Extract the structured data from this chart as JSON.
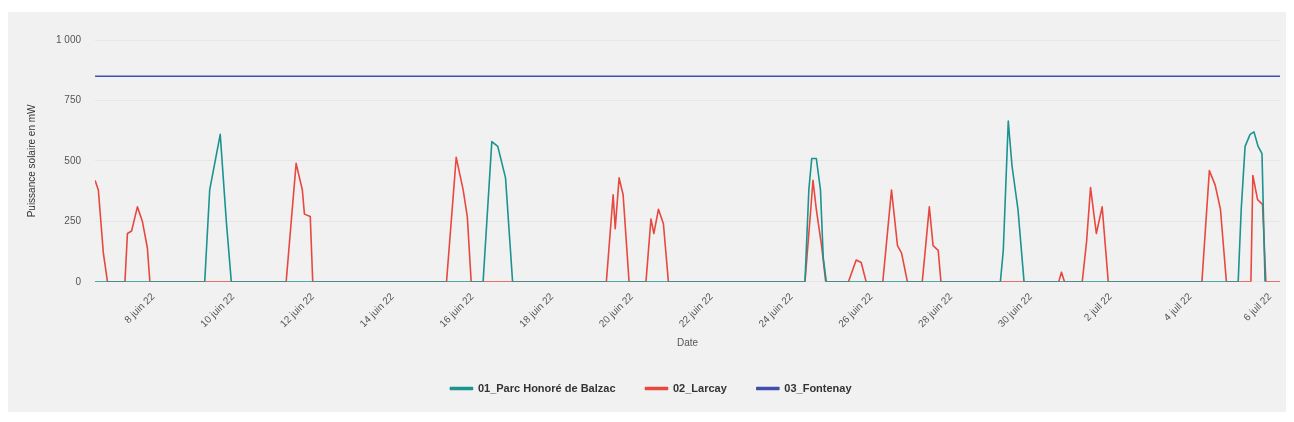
{
  "chart_data": {
    "type": "line",
    "xlabel": "Date",
    "ylabel": "Puissance solaire en mW",
    "xlim": [
      "--06-06T13:00",
      "--07-06T06:00"
    ],
    "xticks": [
      {
        "value": "--06-08",
        "label": "8 juin 22"
      },
      {
        "value": "--06-10",
        "label": "10 juin 22"
      },
      {
        "value": "--06-12",
        "label": "12 juin 22"
      },
      {
        "value": "--06-14",
        "label": "14 juin 22"
      },
      {
        "value": "--06-16",
        "label": "16 juin 22"
      },
      {
        "value": "--06-18",
        "label": "18 juin 22"
      },
      {
        "value": "--06-20",
        "label": "20 juin 22"
      },
      {
        "value": "--06-22",
        "label": "22 juin 22"
      },
      {
        "value": "--06-24",
        "label": "24 juin 22"
      },
      {
        "value": "--06-26",
        "label": "26 juin 22"
      },
      {
        "value": "--06-28",
        "label": "28 juin 22"
      },
      {
        "value": "--06-30",
        "label": "30 juin 22"
      },
      {
        "value": "--07-02",
        "label": "2 juil 22"
      },
      {
        "value": "--07-04",
        "label": "4 juil 22"
      },
      {
        "value": "--07-06",
        "label": "6 juil 22"
      }
    ],
    "ylim": [
      0,
      1000
    ],
    "yticks": [
      0,
      250,
      500,
      750,
      {
        "value": 1000,
        "label": "1 000"
      }
    ],
    "grid": "y",
    "legend": "bottom",
    "marker": "none",
    "line_style": "solid",
    "series": [
      {
        "name": "01_Parc Honoré de Balzac",
        "color": "#1a9391",
        "x": [
          "--06-06T13:00",
          "--06-09T07:00",
          "--06-09T10:00",
          "--06-09T16:20",
          "--06-09T20:00",
          "--06-09T23:00",
          "--06-16T06:30",
          "--06-16T11:45",
          "--06-16T15:20",
          "--06-16T20:00",
          "--06-17T00:15",
          "--06-24T08:10",
          "--06-24T10:30",
          "--06-24T12:15",
          "--06-24T15:00",
          "--06-24T17:30",
          "--06-24T19:10",
          "--06-24T21:00",
          "--06-29T05:45",
          "--06-29T07:30",
          "--06-29T10:30",
          "--06-29T12:45",
          "--06-29T16:20",
          "--06-29T20:00",
          "--07-05T04:50",
          "--07-05T06:40",
          "--07-05T09:00",
          "--07-05T12:00",
          "--07-05T14:20",
          "--07-05T16:50",
          "--07-05T19:10",
          "--07-05T21:00"
        ],
        "values": [
          0,
          0,
          380,
          610,
          250,
          0,
          0,
          580,
          560,
          430,
          0,
          0,
          380,
          510,
          510,
          380,
          100,
          0,
          0,
          130,
          665,
          480,
          300,
          0,
          0,
          300,
          560,
          610,
          620,
          560,
          530,
          0
        ]
      },
      {
        "name": "02_Larcay",
        "color": "#e8483f",
        "x": [
          "--06-06T13:00",
          "--06-06T15:00",
          "--06-06T18:00",
          "--06-06T20:30",
          "--06-07T07:00",
          "--06-07T08:30",
          "--06-07T11:00",
          "--06-07T14:30",
          "--06-07T17:30",
          "--06-07T20:30",
          "--06-07T22:00",
          "--06-11T08:00",
          "--06-11T14:00",
          "--06-11T17:45",
          "--06-11T19:00",
          "--06-11T22:30",
          "--06-12T00:00",
          "--06-15T08:30",
          "--06-15T14:20",
          "--06-15T18:30",
          "--06-15T21:00",
          "--06-15T23:20",
          "--06-19T08:40",
          "--06-19T12:45",
          "--06-19T14:00",
          "--06-19T16:20",
          "--06-19T18:45",
          "--06-19T22:20",
          "--06-20T08:30",
          "--06-20T11:30",
          "--06-20T13:15",
          "--06-20T16:00",
          "--06-20T19:00",
          "--06-20T22:00",
          "--06-24T08:10",
          "--06-24T11:40",
          "--06-24T13:00",
          "--06-24T15:00",
          "--06-24T18:10",
          "--06-24T20:40",
          "--06-25T10:20",
          "--06-25T15:00",
          "--06-25T18:00",
          "--06-25T21:00",
          "--06-26T07:00",
          "--06-26T12:15",
          "--06-26T15:50",
          "--06-26T18:15",
          "--06-26T21:50",
          "--06-27T06:45",
          "--06-27T11:00",
          "--06-27T13:15",
          "--06-27T16:20",
          "--06-27T18:00",
          "--06-30T16:50",
          "--06-30T18:30",
          "--06-30T20:20",
          "--07-01T07:00",
          "--07-01T09:40",
          "--07-01T12:00",
          "--07-01T15:30",
          "--07-01T19:00",
          "--07-01T22:40",
          "--07-04T07:00",
          "--07-04T11:30",
          "--07-04T15:00",
          "--07-04T18:10",
          "--07-04T21:45",
          "--07-05T12:30",
          "--07-05T13:40",
          "--07-05T16:30",
          "--07-05T19:30",
          "--07-05T21:30",
          "--07-06T06:00"
        ],
        "values": [
          420,
          380,
          120,
          0,
          0,
          200,
          210,
          310,
          250,
          140,
          0,
          0,
          490,
          380,
          280,
          270,
          0,
          0,
          515,
          380,
          270,
          0,
          0,
          360,
          220,
          430,
          360,
          0,
          0,
          260,
          200,
          300,
          240,
          0,
          0,
          300,
          420,
          300,
          150,
          0,
          0,
          90,
          80,
          0,
          0,
          380,
          150,
          120,
          0,
          0,
          310,
          150,
          130,
          0,
          0,
          40,
          0,
          0,
          170,
          390,
          200,
          310,
          0,
          0,
          460,
          400,
          300,
          0,
          0,
          440,
          340,
          320,
          0,
          0
        ]
      },
      {
        "name": "03_Fontenay",
        "color": "#3f4fb0",
        "x": [
          "--06-06T13:00",
          "--07-06T06:00"
        ],
        "values": [
          850,
          850
        ]
      }
    ]
  }
}
